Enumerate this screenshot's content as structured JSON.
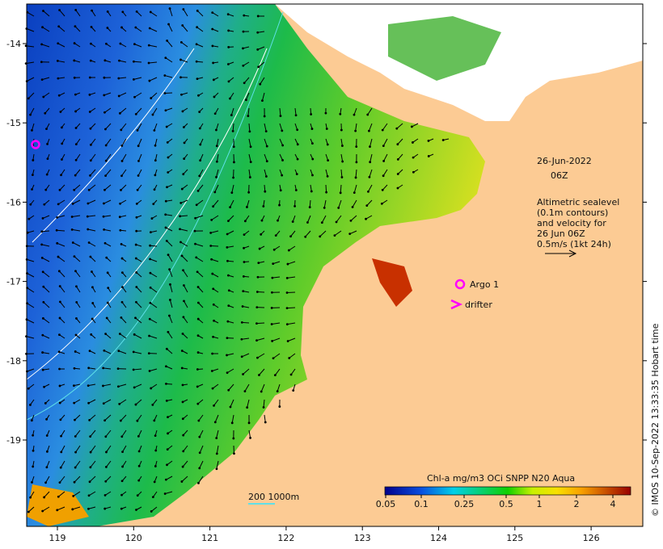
{
  "map": {
    "x_ticks": [
      "119",
      "120",
      "121",
      "122",
      "123",
      "124",
      "125",
      "126"
    ],
    "y_ticks": [
      "-14",
      "-15",
      "-16",
      "-17",
      "-18",
      "-19"
    ],
    "date": "26-Jun-2022",
    "time": "06Z",
    "altimetry_note": [
      "Altimetric sealevel",
      "(0.1m contours)",
      "and velocity for",
      "26 Jun 06Z",
      "0.5m/s (1kt 24h)"
    ],
    "argo_label": "Argo 1",
    "drifter_label": "drifter",
    "scale_label": "200  1000m",
    "side_label": "© IMOS 10-Sep-2022 13:33:35 Hobart time",
    "colorbar": {
      "title": "Chl-a mg/m3 OCi SNPP N20 Aqua",
      "ticks": [
        "0.05",
        "0.1",
        "0.25",
        "0.5",
        "1",
        "2",
        "4"
      ]
    },
    "colors": {
      "land": "#fccb94",
      "argo": "#ff00ff"
    }
  }
}
